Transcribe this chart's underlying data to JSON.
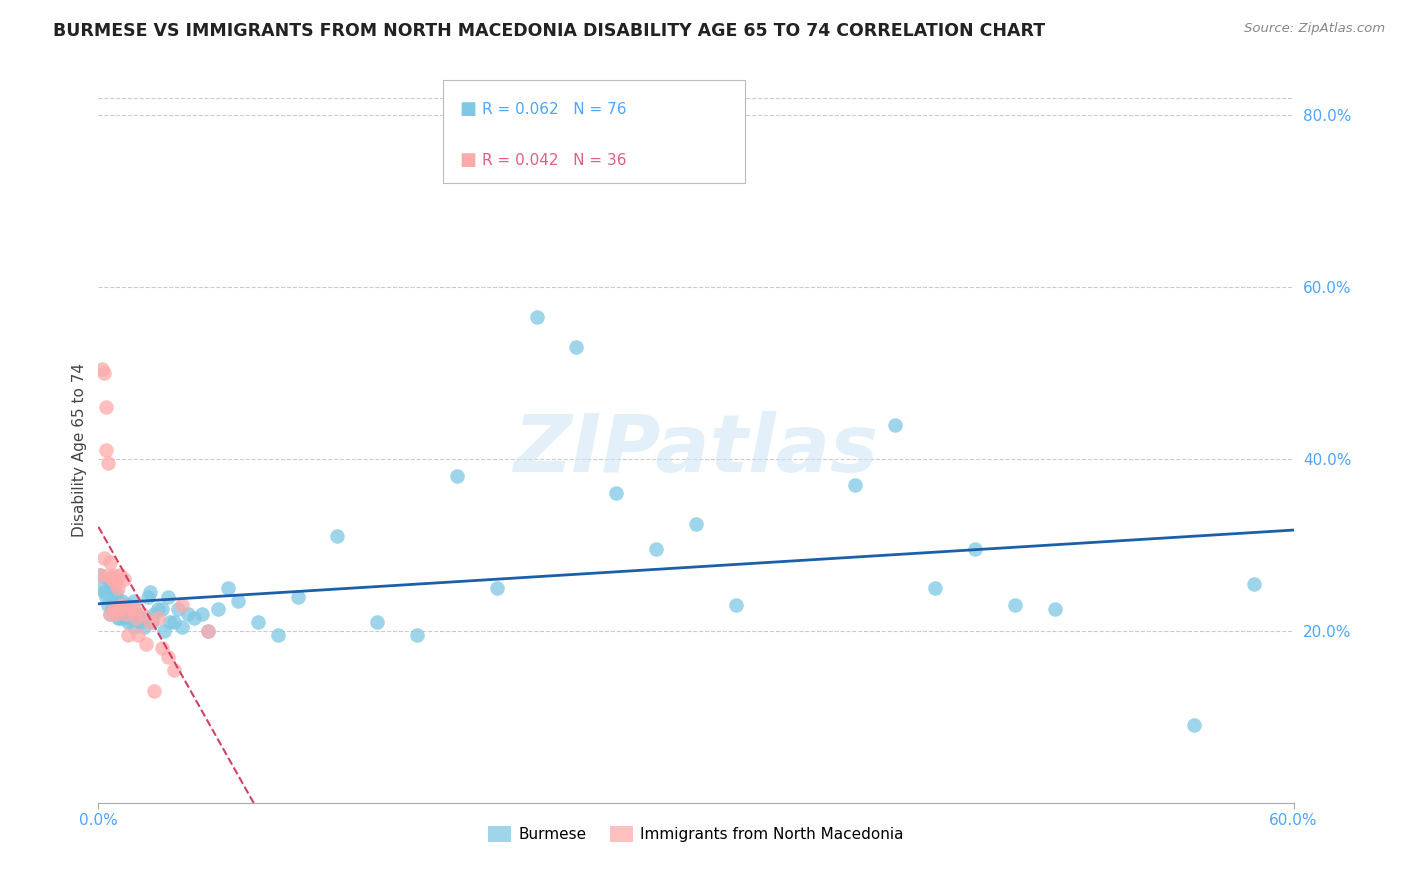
{
  "title": "BURMESE VS IMMIGRANTS FROM NORTH MACEDONIA DISABILITY AGE 65 TO 74 CORRELATION CHART",
  "source": "Source: ZipAtlas.com",
  "ylabel": "Disability Age 65 to 74",
  "xlim": [
    0.0,
    0.6
  ],
  "ylim": [
    0.0,
    0.82
  ],
  "yticks_right": [
    0.2,
    0.4,
    0.6,
    0.8
  ],
  "yticklabels_right": [
    "20.0%",
    "40.0%",
    "60.0%",
    "80.0%"
  ],
  "grid_color": "#cccccc",
  "background_color": "#ffffff",
  "watermark": "ZIPatlas",
  "burmese_color": "#7ec8e3",
  "macedonia_color": "#ffaaaa",
  "burmese_line_color": "#1a5fa8",
  "macedonia_line_color": "#d44060",
  "burmese_x": [
    0.001,
    0.002,
    0.003,
    0.004,
    0.005,
    0.005,
    0.006,
    0.006,
    0.007,
    0.007,
    0.008,
    0.008,
    0.009,
    0.009,
    0.01,
    0.01,
    0.011,
    0.011,
    0.012,
    0.012,
    0.013,
    0.013,
    0.014,
    0.015,
    0.015,
    0.016,
    0.017,
    0.018,
    0.018,
    0.019,
    0.02,
    0.021,
    0.022,
    0.023,
    0.024,
    0.025,
    0.026,
    0.027,
    0.028,
    0.03,
    0.032,
    0.033,
    0.035,
    0.036,
    0.038,
    0.04,
    0.042,
    0.045,
    0.048,
    0.052,
    0.055,
    0.06,
    0.065,
    0.07,
    0.08,
    0.09,
    0.1,
    0.12,
    0.14,
    0.16,
    0.18,
    0.2,
    0.22,
    0.24,
    0.26,
    0.28,
    0.3,
    0.32,
    0.38,
    0.4,
    0.42,
    0.44,
    0.46,
    0.48,
    0.55,
    0.58
  ],
  "burmese_y": [
    0.265,
    0.25,
    0.245,
    0.24,
    0.26,
    0.23,
    0.255,
    0.22,
    0.25,
    0.225,
    0.26,
    0.235,
    0.245,
    0.225,
    0.235,
    0.215,
    0.23,
    0.215,
    0.235,
    0.22,
    0.23,
    0.215,
    0.225,
    0.23,
    0.21,
    0.22,
    0.215,
    0.235,
    0.205,
    0.22,
    0.215,
    0.21,
    0.215,
    0.205,
    0.215,
    0.24,
    0.245,
    0.21,
    0.22,
    0.225,
    0.225,
    0.2,
    0.24,
    0.21,
    0.21,
    0.225,
    0.205,
    0.22,
    0.215,
    0.22,
    0.2,
    0.225,
    0.25,
    0.235,
    0.21,
    0.195,
    0.24,
    0.31,
    0.21,
    0.195,
    0.38,
    0.25,
    0.565,
    0.53,
    0.36,
    0.295,
    0.325,
    0.23,
    0.37,
    0.44,
    0.25,
    0.295,
    0.23,
    0.225,
    0.09,
    0.255
  ],
  "macedonia_x": [
    0.001,
    0.002,
    0.003,
    0.003,
    0.004,
    0.004,
    0.005,
    0.005,
    0.006,
    0.006,
    0.007,
    0.008,
    0.008,
    0.009,
    0.009,
    0.01,
    0.01,
    0.011,
    0.012,
    0.013,
    0.014,
    0.015,
    0.016,
    0.018,
    0.019,
    0.02,
    0.022,
    0.024,
    0.026,
    0.028,
    0.03,
    0.032,
    0.035,
    0.038,
    0.042,
    0.055
  ],
  "macedonia_y": [
    0.265,
    0.505,
    0.5,
    0.285,
    0.46,
    0.41,
    0.395,
    0.265,
    0.28,
    0.22,
    0.26,
    0.265,
    0.225,
    0.255,
    0.22,
    0.25,
    0.225,
    0.265,
    0.23,
    0.26,
    0.22,
    0.195,
    0.225,
    0.225,
    0.215,
    0.195,
    0.22,
    0.185,
    0.21,
    0.13,
    0.215,
    0.18,
    0.17,
    0.155,
    0.23,
    0.2
  ]
}
